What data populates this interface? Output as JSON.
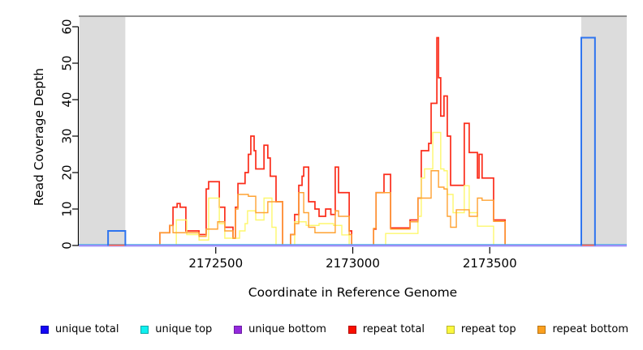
{
  "chart_data": {
    "type": "line",
    "title": "",
    "xlabel": "Coordinate in Reference Genome",
    "ylabel": "Read Coverage Depth",
    "xlim": [
      2172000,
      2174000
    ],
    "ylim": [
      0,
      60
    ],
    "xticks": [
      2172500,
      2173000,
      2173500
    ],
    "yticks": [
      0,
      10,
      20,
      30,
      40,
      50,
      60
    ],
    "grid": false,
    "legend_position": "bottom",
    "colors": {
      "shaded_region": "#dcdcdc",
      "top_rule": "#8f8f8f",
      "axis": "#000000",
      "unique_total_box": "#2e74ef",
      "unique_top_line": "#27e0e0",
      "unique_bottom_line": "#8b7cf4",
      "unique_bottom_line_light": "#cac3fb",
      "repeat_total_line": "#fb2c1a",
      "repeat_top_line": "#fdf76d",
      "repeat_bottom_line": "#ffa232",
      "baseline_red_segment": "#f2544c"
    },
    "shaded_regions": [
      {
        "x0": 2172003,
        "x1": 2172170
      },
      {
        "x0": 2173834,
        "x1": 2174000
      }
    ],
    "series": [
      {
        "name": "unique total",
        "style": "box",
        "color": "#2e74ef",
        "boxes": [
          {
            "x0": 2172107,
            "x1": 2172170,
            "value": 4
          },
          {
            "x0": 2173834,
            "x1": 2173884,
            "value": 57
          }
        ]
      },
      {
        "name": "unique top",
        "style": "steps",
        "color": "#27e0e0",
        "steps": [
          [
            2172000,
            0
          ],
          [
            2174000,
            0
          ]
        ]
      },
      {
        "name": "unique bottom",
        "style": "steps",
        "color": "#8b7cf4",
        "steps": [
          [
            2172000,
            0
          ],
          [
            2174000,
            0
          ]
        ]
      },
      {
        "name": "repeat total",
        "style": "steps",
        "color": "#fb2c1a",
        "steps": [
          [
            2172296,
            3.5
          ],
          [
            2172332,
            5.5
          ],
          [
            2172344,
            10.5
          ],
          [
            2172359,
            11.5
          ],
          [
            2172370,
            10.5
          ],
          [
            2172391,
            4
          ],
          [
            2172439,
            3
          ],
          [
            2172465,
            15.5
          ],
          [
            2172474,
            17.5
          ],
          [
            2172513,
            10.5
          ],
          [
            2172533,
            5
          ],
          [
            2172563,
            2
          ],
          [
            2172572,
            10.5
          ],
          [
            2172581,
            17
          ],
          [
            2172607,
            20
          ],
          [
            2172619,
            25
          ],
          [
            2172628,
            30
          ],
          [
            2172640,
            26
          ],
          [
            2172646,
            21
          ],
          [
            2172676,
            27.5
          ],
          [
            2172690,
            24
          ],
          [
            2172699,
            19
          ],
          [
            2172720,
            12
          ],
          [
            2172744,
            0
          ],
          [
            2172773,
            3
          ],
          [
            2172788,
            8.5
          ],
          [
            2172803,
            16.5
          ],
          [
            2172815,
            19
          ],
          [
            2172821,
            21.5
          ],
          [
            2172839,
            12
          ],
          [
            2172862,
            10
          ],
          [
            2172877,
            8
          ],
          [
            2172901,
            10
          ],
          [
            2172920,
            8.5
          ],
          [
            2172936,
            21.5
          ],
          [
            2172948,
            14.5
          ],
          [
            2172987,
            4
          ],
          [
            2172996,
            0
          ],
          [
            2173076,
            4.5
          ],
          [
            2173085,
            14.5
          ],
          [
            2173114,
            19.5
          ],
          [
            2173138,
            4.8
          ],
          [
            2173209,
            7
          ],
          [
            2173238,
            13
          ],
          [
            2173250,
            26
          ],
          [
            2173277,
            28
          ],
          [
            2173286,
            39
          ],
          [
            2173307,
            57
          ],
          [
            2173313,
            46
          ],
          [
            2173321,
            35.5
          ],
          [
            2173333,
            41
          ],
          [
            2173345,
            30
          ],
          [
            2173357,
            16.5
          ],
          [
            2173407,
            33.5
          ],
          [
            2173425,
            25.5
          ],
          [
            2173455,
            18.5
          ],
          [
            2173461,
            25
          ],
          [
            2173472,
            18.5
          ],
          [
            2173514,
            7
          ],
          [
            2173556,
            0
          ]
        ]
      },
      {
        "name": "repeat top",
        "style": "steps",
        "color": "#fdf76d",
        "steps": [
          [
            2172356,
            7
          ],
          [
            2172394,
            3
          ],
          [
            2172439,
            1.5
          ],
          [
            2172474,
            13
          ],
          [
            2172513,
            6
          ],
          [
            2172533,
            2
          ],
          [
            2172587,
            4
          ],
          [
            2172607,
            6
          ],
          [
            2172616,
            9.5
          ],
          [
            2172646,
            7
          ],
          [
            2172676,
            13
          ],
          [
            2172705,
            5
          ],
          [
            2172720,
            0
          ],
          [
            2172788,
            6.5
          ],
          [
            2172830,
            5.5
          ],
          [
            2172877,
            6
          ],
          [
            2172930,
            5.5
          ],
          [
            2172960,
            2.9
          ],
          [
            2172987,
            0
          ],
          [
            2173120,
            3.3
          ],
          [
            2173238,
            8
          ],
          [
            2173250,
            18.5
          ],
          [
            2173262,
            21
          ],
          [
            2173292,
            31
          ],
          [
            2173321,
            21
          ],
          [
            2173333,
            20.5
          ],
          [
            2173345,
            14
          ],
          [
            2173366,
            9
          ],
          [
            2173407,
            16.4
          ],
          [
            2173425,
            9
          ],
          [
            2173455,
            5.3
          ],
          [
            2173514,
            0
          ]
        ]
      },
      {
        "name": "repeat bottom",
        "style": "steps",
        "color": "#ffa232",
        "steps": [
          [
            2172296,
            3.5
          ],
          [
            2172332,
            5.5
          ],
          [
            2172344,
            3.5
          ],
          [
            2172439,
            2.5
          ],
          [
            2172465,
            4.5
          ],
          [
            2172507,
            6.5
          ],
          [
            2172533,
            4
          ],
          [
            2172563,
            2
          ],
          [
            2172572,
            10
          ],
          [
            2172581,
            14
          ],
          [
            2172619,
            13.5
          ],
          [
            2172646,
            9
          ],
          [
            2172690,
            12
          ],
          [
            2172744,
            0
          ],
          [
            2172773,
            3
          ],
          [
            2172788,
            6
          ],
          [
            2172803,
            14.5
          ],
          [
            2172821,
            9
          ],
          [
            2172839,
            5
          ],
          [
            2172862,
            3.5
          ],
          [
            2172936,
            9.5
          ],
          [
            2172948,
            8
          ],
          [
            2172987,
            3
          ],
          [
            2172996,
            0
          ],
          [
            2173076,
            4.7
          ],
          [
            2173085,
            14.5
          ],
          [
            2173138,
            4.5
          ],
          [
            2173209,
            6.5
          ],
          [
            2173238,
            13
          ],
          [
            2173286,
            20.5
          ],
          [
            2173313,
            16
          ],
          [
            2173333,
            15.5
          ],
          [
            2173345,
            8
          ],
          [
            2173357,
            5
          ],
          [
            2173378,
            9.8
          ],
          [
            2173425,
            8
          ],
          [
            2173455,
            13
          ],
          [
            2173472,
            12.4
          ],
          [
            2173514,
            6.6
          ],
          [
            2173556,
            0
          ]
        ]
      }
    ],
    "baseline_red_segments": [
      {
        "x0": 2172107,
        "x1": 2172170
      },
      {
        "x0": 2173834,
        "x1": 2173884
      }
    ],
    "legend": [
      {
        "label": "unique total",
        "fill": "#1507f5",
        "border": "#0a04b0"
      },
      {
        "label": "unique top",
        "fill": "#0ff0f0",
        "border": "#0aa8a8"
      },
      {
        "label": "unique bottom",
        "fill": "#9429dd",
        "border": "#6b1ca3"
      },
      {
        "label": "repeat total",
        "fill": "#f90f00",
        "border": "#b50900"
      },
      {
        "label": "repeat top",
        "fill": "#fbf83e",
        "border": "#b8b52c"
      },
      {
        "label": "repeat bottom",
        "fill": "#fba01f",
        "border": "#b87414"
      }
    ]
  }
}
